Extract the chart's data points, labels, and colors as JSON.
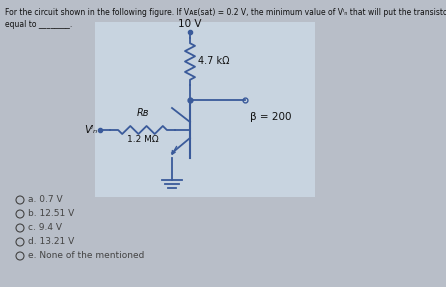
{
  "title_line1": "For the circuit shown in the following figure. If Vᴀᴇ(sat) = 0.2 V, the minimum value of Vᴵₙ that will put the transistor into saturation is",
  "title_line2": "equal to ________.",
  "supply_voltage": "10 V",
  "rc_label": "4.7 kΩ",
  "rb_label": "Rʙ",
  "rb_value": "1.2 MΩ",
  "beta_label": "β = 200",
  "vin_label": "Vᴵₙ",
  "options": [
    "a. 0.7 V",
    "b. 12.51 V",
    "c. 9.4 V",
    "d. 13.21 V",
    "e. None of the mentioned"
  ],
  "bg_color": "#b8bec8",
  "circuit_bg": "#d0d8e0",
  "circuit_color": "#3a5a9a",
  "text_color": "#111111",
  "option_text_color": "#444444",
  "title_color": "#111111"
}
